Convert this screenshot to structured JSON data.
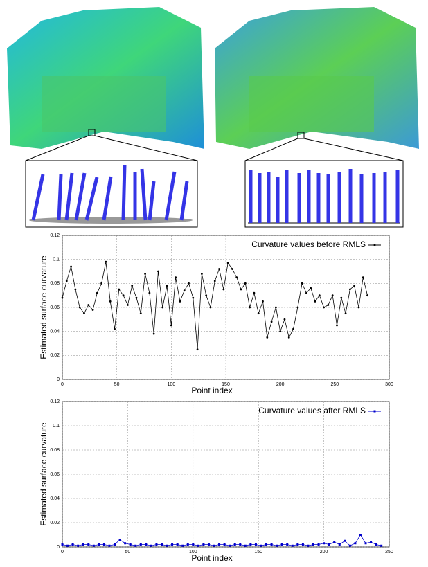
{
  "chart_data": [
    {
      "type": "line",
      "xlabel": "Point index",
      "ylabel": "Estimated surface curvature",
      "xlim": [
        0,
        300
      ],
      "xticks": [
        0,
        50,
        100,
        150,
        200,
        250,
        300
      ],
      "ylim": [
        0,
        0.12
      ],
      "yticks": [
        0,
        0.02,
        0.04,
        0.06,
        0.08,
        0.1,
        0.12
      ],
      "grid": true,
      "legend": "upper right",
      "marker": "circle",
      "x": [
        0,
        4,
        8,
        12,
        16,
        20,
        24,
        28,
        32,
        36,
        40,
        44,
        48,
        52,
        56,
        60,
        64,
        68,
        72,
        76,
        80,
        84,
        88,
        92,
        96,
        100,
        104,
        108,
        112,
        116,
        120,
        124,
        128,
        132,
        136,
        140,
        144,
        148,
        152,
        156,
        160,
        164,
        168,
        172,
        176,
        180,
        184,
        188,
        192,
        196,
        200,
        204,
        208,
        212,
        216,
        220,
        224,
        228,
        232,
        236,
        240,
        244,
        248,
        252,
        256,
        260,
        264,
        268,
        272,
        276,
        280
      ],
      "series": [
        {
          "name": "Curvature values before RMLS",
          "color": "#000000",
          "values": [
            0.068,
            0.082,
            0.094,
            0.075,
            0.06,
            0.055,
            0.062,
            0.058,
            0.072,
            0.08,
            0.098,
            0.065,
            0.042,
            0.075,
            0.07,
            0.062,
            0.078,
            0.068,
            0.055,
            0.088,
            0.072,
            0.038,
            0.09,
            0.06,
            0.078,
            0.045,
            0.085,
            0.065,
            0.074,
            0.08,
            0.068,
            0.025,
            0.088,
            0.07,
            0.06,
            0.082,
            0.092,
            0.075,
            0.097,
            0.092,
            0.085,
            0.075,
            0.08,
            0.06,
            0.072,
            0.055,
            0.065,
            0.035,
            0.048,
            0.06,
            0.04,
            0.05,
            0.035,
            0.042,
            0.06,
            0.08,
            0.072,
            0.076,
            0.065,
            0.07,
            0.06,
            0.062,
            0.07,
            0.045,
            0.068,
            0.055,
            0.075,
            0.078,
            0.06,
            0.085,
            0.07
          ]
        }
      ]
    },
    {
      "type": "line",
      "xlabel": "Point index",
      "ylabel": "Estimated surface curvature",
      "xlim": [
        0,
        250
      ],
      "xticks": [
        0,
        50,
        100,
        150,
        200,
        250
      ],
      "ylim": [
        0,
        0.12
      ],
      "yticks": [
        0,
        0.02,
        0.04,
        0.06,
        0.08,
        0.1,
        0.12
      ],
      "grid": true,
      "legend": "upper right",
      "marker": "square",
      "x": [
        0,
        4,
        8,
        12,
        16,
        20,
        24,
        28,
        32,
        36,
        40,
        44,
        48,
        52,
        56,
        60,
        64,
        68,
        72,
        76,
        80,
        84,
        88,
        92,
        96,
        100,
        104,
        108,
        112,
        116,
        120,
        124,
        128,
        132,
        136,
        140,
        144,
        148,
        152,
        156,
        160,
        164,
        168,
        172,
        176,
        180,
        184,
        188,
        192,
        196,
        200,
        204,
        208,
        212,
        216,
        220,
        224,
        228,
        232,
        236,
        240,
        244
      ],
      "series": [
        {
          "name": "Curvature values after RMLS",
          "color": "#0000cc",
          "values": [
            0.002,
            0.001,
            0.002,
            0.001,
            0.002,
            0.002,
            0.001,
            0.002,
            0.002,
            0.001,
            0.002,
            0.006,
            0.003,
            0.002,
            0.001,
            0.002,
            0.002,
            0.001,
            0.002,
            0.002,
            0.001,
            0.002,
            0.002,
            0.001,
            0.002,
            0.002,
            0.001,
            0.002,
            0.002,
            0.001,
            0.002,
            0.002,
            0.001,
            0.002,
            0.002,
            0.001,
            0.002,
            0.002,
            0.001,
            0.002,
            0.002,
            0.001,
            0.002,
            0.002,
            0.001,
            0.002,
            0.002,
            0.001,
            0.002,
            0.002,
            0.003,
            0.002,
            0.004,
            0.002,
            0.005,
            0.001,
            0.003,
            0.01,
            0.003,
            0.004,
            0.002,
            0.001
          ]
        }
      ]
    }
  ]
}
